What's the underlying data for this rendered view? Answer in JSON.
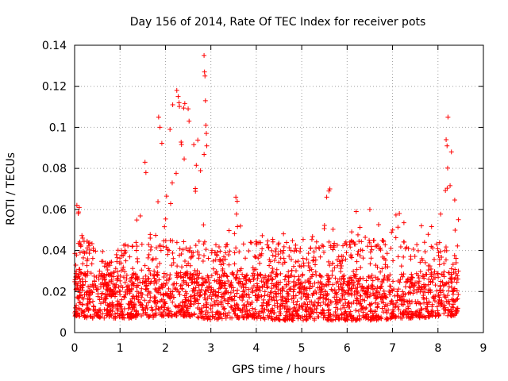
{
  "chart_data": {
    "type": "scatter",
    "title": "Day 156 of 2014, Rate Of TEC Index for receiver pots",
    "xlabel": "GPS time / hours",
    "ylabel": "ROTI / TECUs",
    "xlim": [
      0,
      9
    ],
    "ylim": [
      0,
      0.14
    ],
    "xticks": [
      0,
      1,
      2,
      3,
      4,
      5,
      6,
      7,
      8,
      9
    ],
    "yticks": [
      0,
      0.02,
      0.04,
      0.06,
      0.08,
      0.1,
      0.12,
      0.14
    ],
    "xtick_labels": [
      "0",
      "1",
      "2",
      "3",
      "4",
      "5",
      "6",
      "7",
      "8",
      "9"
    ],
    "ytick_labels": [
      "0",
      "0.02",
      "0.04",
      "0.06",
      "0.08",
      "0.1",
      "0.12",
      "0.14"
    ],
    "grid": true,
    "marker": "plus",
    "marker_color": "#ff0000",
    "data_extent_x": [
      0,
      8.45
    ],
    "envelope": [
      {
        "x": 0.0,
        "base": 0.008,
        "top": 0.042
      },
      {
        "x": 0.1,
        "base": 0.008,
        "top": 0.062
      },
      {
        "x": 0.3,
        "base": 0.007,
        "top": 0.045
      },
      {
        "x": 0.5,
        "base": 0.007,
        "top": 0.044
      },
      {
        "x": 0.8,
        "base": 0.007,
        "top": 0.036
      },
      {
        "x": 1.0,
        "base": 0.007,
        "top": 0.042
      },
      {
        "x": 1.3,
        "base": 0.007,
        "top": 0.045
      },
      {
        "x": 1.5,
        "base": 0.008,
        "top": 0.075
      },
      {
        "x": 1.7,
        "base": 0.007,
        "top": 0.045
      },
      {
        "x": 1.9,
        "base": 0.008,
        "top": 0.098
      },
      {
        "x": 2.05,
        "base": 0.008,
        "top": 0.082
      },
      {
        "x": 2.25,
        "base": 0.008,
        "top": 0.118
      },
      {
        "x": 2.5,
        "base": 0.008,
        "top": 0.11
      },
      {
        "x": 2.65,
        "base": 0.007,
        "top": 0.09
      },
      {
        "x": 2.85,
        "base": 0.007,
        "top": 0.135
      },
      {
        "x": 3.0,
        "base": 0.006,
        "top": 0.045
      },
      {
        "x": 3.3,
        "base": 0.007,
        "top": 0.04
      },
      {
        "x": 3.55,
        "base": 0.007,
        "top": 0.066
      },
      {
        "x": 3.8,
        "base": 0.007,
        "top": 0.06
      },
      {
        "x": 4.0,
        "base": 0.007,
        "top": 0.05
      },
      {
        "x": 4.3,
        "base": 0.006,
        "top": 0.045
      },
      {
        "x": 4.6,
        "base": 0.006,
        "top": 0.05
      },
      {
        "x": 4.9,
        "base": 0.006,
        "top": 0.044
      },
      {
        "x": 5.1,
        "base": 0.006,
        "top": 0.05
      },
      {
        "x": 5.4,
        "base": 0.006,
        "top": 0.045
      },
      {
        "x": 5.6,
        "base": 0.006,
        "top": 0.07
      },
      {
        "x": 5.9,
        "base": 0.006,
        "top": 0.042
      },
      {
        "x": 6.2,
        "base": 0.006,
        "top": 0.06
      },
      {
        "x": 6.5,
        "base": 0.006,
        "top": 0.06
      },
      {
        "x": 6.8,
        "base": 0.006,
        "top": 0.05
      },
      {
        "x": 7.1,
        "base": 0.007,
        "top": 0.058
      },
      {
        "x": 7.4,
        "base": 0.007,
        "top": 0.054
      },
      {
        "x": 7.7,
        "base": 0.007,
        "top": 0.055
      },
      {
        "x": 8.0,
        "base": 0.008,
        "top": 0.05
      },
      {
        "x": 8.25,
        "base": 0.008,
        "top": 0.105
      },
      {
        "x": 8.45,
        "base": 0.008,
        "top": 0.055
      }
    ],
    "highlight_points": [
      {
        "x": 2.85,
        "y": 0.135
      },
      {
        "x": 2.86,
        "y": 0.127
      },
      {
        "x": 2.87,
        "y": 0.125
      },
      {
        "x": 2.88,
        "y": 0.113
      },
      {
        "x": 2.89,
        "y": 0.101
      },
      {
        "x": 2.9,
        "y": 0.097
      },
      {
        "x": 2.91,
        "y": 0.091
      },
      {
        "x": 2.25,
        "y": 0.118
      },
      {
        "x": 2.28,
        "y": 0.115
      },
      {
        "x": 2.3,
        "y": 0.112
      },
      {
        "x": 2.16,
        "y": 0.111
      },
      {
        "x": 2.1,
        "y": 0.099
      },
      {
        "x": 1.85,
        "y": 0.105
      },
      {
        "x": 1.88,
        "y": 0.1
      },
      {
        "x": 2.5,
        "y": 0.109
      },
      {
        "x": 2.52,
        "y": 0.103
      },
      {
        "x": 8.22,
        "y": 0.105
      },
      {
        "x": 8.18,
        "y": 0.094
      },
      {
        "x": 8.2,
        "y": 0.091
      },
      {
        "x": 5.62,
        "y": 0.07
      },
      {
        "x": 5.6,
        "y": 0.069
      },
      {
        "x": 5.55,
        "y": 0.066
      },
      {
        "x": 3.55,
        "y": 0.066
      },
      {
        "x": 3.58,
        "y": 0.064
      },
      {
        "x": 0.05,
        "y": 0.062
      },
      {
        "x": 0.08,
        "y": 0.058
      },
      {
        "x": 1.55,
        "y": 0.083
      },
      {
        "x": 1.57,
        "y": 0.078
      },
      {
        "x": 6.5,
        "y": 0.06
      },
      {
        "x": 6.2,
        "y": 0.059
      },
      {
        "x": 7.15,
        "y": 0.058
      },
      {
        "x": 8.45,
        "y": 0.055
      }
    ]
  }
}
